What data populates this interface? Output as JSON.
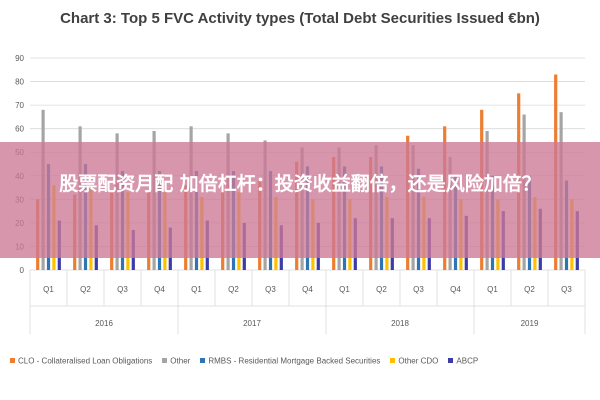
{
  "banner": {
    "text": "股票配资月配 加倍杠杆：投资收益翻倍，还是风险加倍？"
  },
  "colors": {
    "CLO - Collateralised Loan Obligations": "#ed7d31",
    "Other": "#a5a5a5",
    "RMBS - Residential Mortgage Backed Securities": "#2e75b6",
    "Other CDO": "#ffc000",
    "ABCP": "#3c3ca8"
  },
  "chart_data": {
    "type": "bar",
    "title": "Chart 3: Top 5 FVC Activity types (Total Debt Securities Issued €bn)",
    "ylim": [
      0,
      90
    ],
    "yticks": [
      0,
      10,
      20,
      30,
      40,
      50,
      60,
      70,
      80,
      90
    ],
    "grid": true,
    "legend_position": "bottom",
    "categories": [
      "Q1",
      "Q2",
      "Q3",
      "Q4",
      "Q1",
      "Q2",
      "Q3",
      "Q4",
      "Q1",
      "Q2",
      "Q3",
      "Q4",
      "Q1",
      "Q2",
      "Q3"
    ],
    "groups": [
      {
        "label": "2016",
        "count": 4
      },
      {
        "label": "2017",
        "count": 4
      },
      {
        "label": "2018",
        "count": 4
      },
      {
        "label": "2019",
        "count": 3
      }
    ],
    "series": [
      {
        "name": "CLO - Collateralised Loan Obligations",
        "values": [
          30,
          32,
          33,
          34,
          36,
          38,
          38,
          46,
          48,
          48,
          57,
          61,
          68,
          75,
          83
        ]
      },
      {
        "name": "Other",
        "values": [
          68,
          61,
          58,
          59,
          61,
          58,
          55,
          52,
          52,
          53,
          53,
          48,
          59,
          66,
          67
        ]
      },
      {
        "name": "RMBS - Residential Mortgage Backed Securities",
        "values": [
          45,
          45,
          42,
          42,
          42,
          42,
          42,
          44,
          44,
          44,
          43,
          40,
          40,
          40,
          38
        ]
      },
      {
        "name": "Other CDO",
        "values": [
          36,
          36,
          33,
          33,
          31,
          33,
          31,
          30,
          30,
          31,
          31,
          30,
          30,
          31,
          30
        ]
      },
      {
        "name": "ABCP",
        "values": [
          21,
          19,
          17,
          18,
          21,
          20,
          19,
          20,
          22,
          22,
          22,
          23,
          25,
          26,
          25
        ]
      }
    ]
  }
}
